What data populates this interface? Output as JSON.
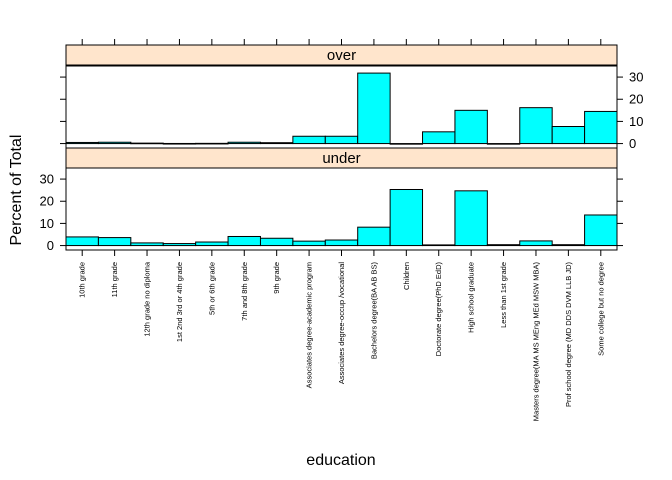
{
  "chart_data": {
    "type": "bar",
    "xlabel": "education",
    "ylabel": "Percent of Total",
    "ylim": [
      -2,
      35
    ],
    "yticks": [
      0,
      10,
      20,
      30
    ],
    "bar_color": "#00FFFF",
    "strip_color": "#FFE5CC",
    "categories": [
      "10th grade",
      "11th grade",
      "12th grade no diploma",
      "1st 2nd 3rd or 4th grade",
      "5th or 6th grade",
      "7th and 8th grade",
      "9th grade",
      "Associates degree-academic program",
      "Associates degree-occup /vocational",
      "Bachelors degree(BA AB BS)",
      "Children",
      "Doctorate degree(PhD EdD)",
      "High school graduate",
      "Less than 1st grade",
      "Masters degree(MA MS MEng MEd MSW MBA)",
      "Prof school degree (MD DDS DVM LLB JD)",
      "Some college but no degree"
    ],
    "panels": [
      {
        "name": "over",
        "values": [
          0.5,
          0.6,
          0.2,
          0.05,
          0.1,
          0.6,
          0.4,
          3.3,
          3.3,
          31.8,
          0.0,
          5.3,
          15.0,
          0.0,
          16.2,
          7.7,
          14.5
        ]
      },
      {
        "name": "under",
        "values": [
          3.9,
          3.6,
          1.2,
          0.9,
          1.6,
          4.1,
          3.3,
          2.0,
          2.5,
          8.3,
          25.3,
          0.3,
          24.7,
          0.4,
          2.1,
          0.4,
          13.8
        ]
      }
    ]
  }
}
